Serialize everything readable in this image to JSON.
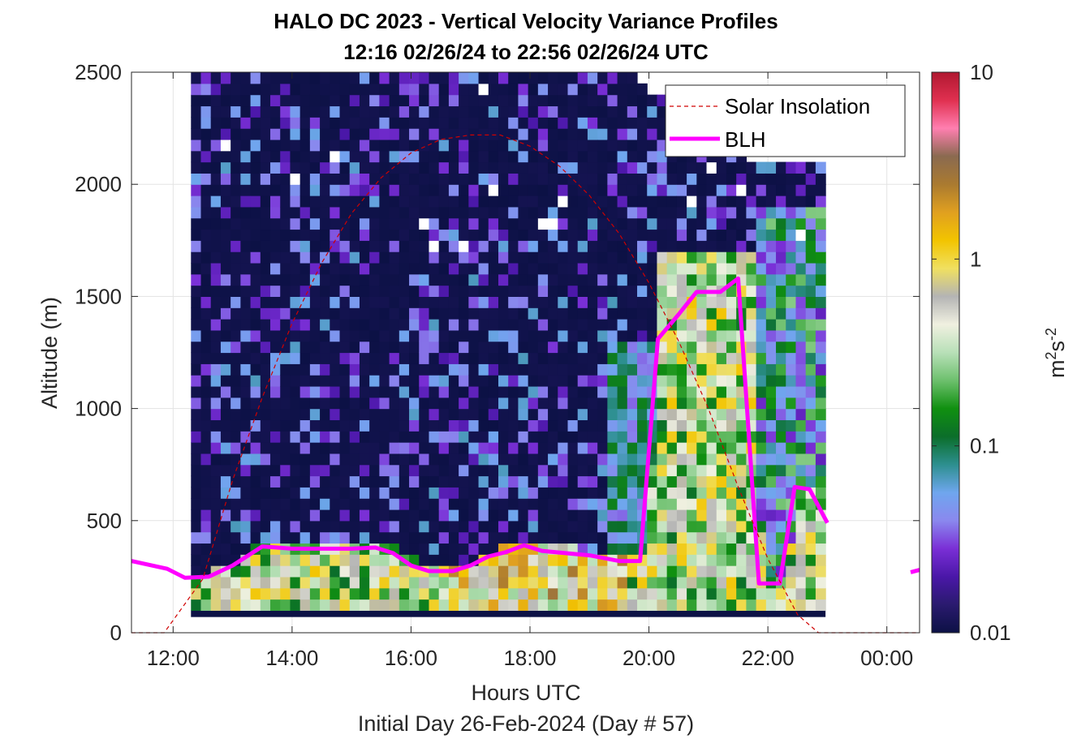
{
  "chart_data": {
    "type": "heatmap",
    "title": "HALO DC 2023 - Vertical Velocity Variance Profiles",
    "subtitle": "12:16 02/26/24 to 22:56 02/26/24  UTC",
    "xlabel": "Hours UTC",
    "xlabel2": "Initial Day 26-Feb-2024 (Day # 57)",
    "ylabel": "Altitude (m)",
    "xlim_hours": [
      11.3,
      24.55
    ],
    "ylim": [
      0,
      2500
    ],
    "x_ticks": [
      {
        "hour": 12,
        "label": "12:00"
      },
      {
        "hour": 14,
        "label": "14:00"
      },
      {
        "hour": 16,
        "label": "16:00"
      },
      {
        "hour": 18,
        "label": "18:00"
      },
      {
        "hour": 20,
        "label": "20:00"
      },
      {
        "hour": 22,
        "label": "22:00"
      },
      {
        "hour": 24,
        "label": "00:00"
      }
    ],
    "y_ticks": [
      0,
      500,
      1000,
      1500,
      2000,
      2500
    ],
    "y_tick_labels": [
      "0",
      "500",
      "1000",
      "1500",
      "2000",
      "2500"
    ],
    "grid": true,
    "colorbar": {
      "scale": "log",
      "range": [
        0.01,
        10
      ],
      "ticks": [
        0.01,
        0.1,
        1,
        10
      ],
      "tick_labels": [
        "0.01",
        "0.1",
        "1",
        "10"
      ],
      "label": "m²s⁻²",
      "label_base": "m",
      "label_exp1": "2",
      "label_mid": "s",
      "label_exp2": "-2",
      "colors": [
        "#0c1145",
        "#2a1a6e",
        "#4a17a8",
        "#7a2fd6",
        "#8a88ee",
        "#6fa6ee",
        "#2d8f8f",
        "#0b6e2a",
        "#109010",
        "#6dc06d",
        "#b8e0b8",
        "#f0f0e0",
        "#b4b4b4",
        "#f0e060",
        "#f2c400",
        "#e0a020",
        "#aa7a30",
        "#8a6a50",
        "#ff7fb0",
        "#e03050",
        "#b01830"
      ]
    },
    "heatmap_grid": {
      "time_start": 12.3,
      "time_step": 0.1667,
      "alt_start": 100,
      "alt_step": 50,
      "n_times": 64,
      "n_alts": 48
    },
    "legend": {
      "placement": "top-right",
      "entries": [
        {
          "label": "Solar Insolation",
          "style": "dashed",
          "color": "#d00000"
        },
        {
          "label": "BLH",
          "style": "solid",
          "color": "#ff00ff"
        }
      ]
    },
    "series": [
      {
        "name": "BLH",
        "color": "#ff00ff",
        "points": [
          [
            11.3,
            320
          ],
          [
            11.9,
            285
          ],
          [
            12.2,
            245
          ],
          [
            12.6,
            250
          ],
          [
            13.0,
            300
          ],
          [
            13.5,
            385
          ],
          [
            14.0,
            375
          ],
          [
            14.5,
            375
          ],
          [
            15.0,
            375
          ],
          [
            15.4,
            380
          ],
          [
            15.7,
            355
          ],
          [
            16.0,
            300
          ],
          [
            16.3,
            275
          ],
          [
            16.7,
            275
          ],
          [
            17.0,
            300
          ],
          [
            17.3,
            340
          ],
          [
            17.6,
            360
          ],
          [
            17.9,
            390
          ],
          [
            18.2,
            365
          ],
          [
            18.6,
            355
          ],
          [
            19.0,
            345
          ],
          [
            19.5,
            320
          ],
          [
            19.85,
            320
          ],
          [
            20.15,
            1310
          ],
          [
            20.5,
            1420
          ],
          [
            20.8,
            1520
          ],
          [
            21.2,
            1520
          ],
          [
            21.5,
            1580
          ],
          [
            21.85,
            220
          ],
          [
            22.2,
            220
          ],
          [
            22.45,
            650
          ],
          [
            22.7,
            640
          ],
          [
            23.0,
            490
          ]
        ]
      },
      {
        "name": "BLH",
        "color": "#ff00ff",
        "points": [
          [
            24.4,
            270
          ],
          [
            24.55,
            280
          ]
        ]
      },
      {
        "name": "Solar Insolation",
        "color": "#d00000",
        "points": [
          [
            11.3,
            0
          ],
          [
            11.85,
            0
          ],
          [
            12.5,
            240
          ],
          [
            13.0,
            680
          ],
          [
            13.5,
            1050
          ],
          [
            14.0,
            1380
          ],
          [
            14.5,
            1650
          ],
          [
            15.0,
            1870
          ],
          [
            15.5,
            2030
          ],
          [
            16.0,
            2140
          ],
          [
            16.5,
            2200
          ],
          [
            17.0,
            2220
          ],
          [
            17.5,
            2220
          ],
          [
            18.0,
            2170
          ],
          [
            18.5,
            2080
          ],
          [
            19.0,
            1950
          ],
          [
            19.5,
            1780
          ],
          [
            20.0,
            1560
          ],
          [
            20.5,
            1300
          ],
          [
            21.0,
            1000
          ],
          [
            21.5,
            650
          ],
          [
            22.0,
            330
          ],
          [
            22.5,
            80
          ],
          [
            22.85,
            0
          ],
          [
            24.55,
            0
          ]
        ]
      }
    ]
  }
}
